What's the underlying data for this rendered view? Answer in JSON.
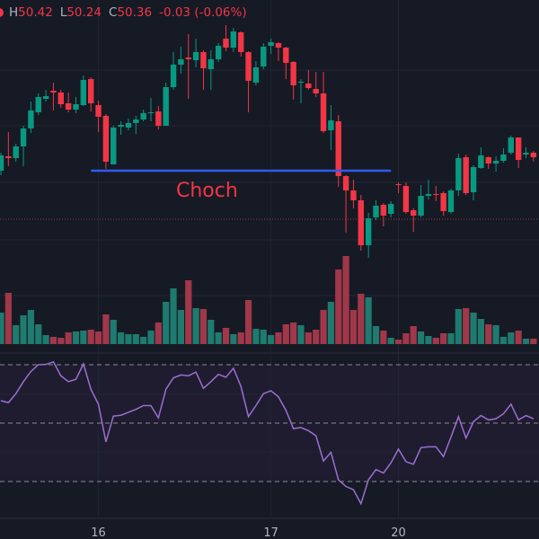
{
  "legend": {
    "high_label": "H",
    "high": "50.42",
    "low_label": "L",
    "low": "50.24",
    "close_label": "C",
    "close": "50.36",
    "change": "-0.03 (-0.06%)"
  },
  "annotation": {
    "label": "Choch",
    "level": 50.22,
    "from_index": 12,
    "to_index": 52
  },
  "price_line": 50.112,
  "colors": {
    "bg": "#161a25",
    "up": "#089981",
    "down": "#f23645",
    "vol_up": "#1f7a6f",
    "vol_down": "#a0384a",
    "level_line": "#2f5bf0",
    "rsi": "#9b6fd0",
    "rsi_band": "#1f1c30"
  },
  "chart_data": {
    "type": "candlestick",
    "x_labels": [
      {
        "label": "16",
        "index": 13
      },
      {
        "label": "17",
        "index": 36
      },
      {
        "label": "20",
        "index": 53
      }
    ],
    "ohlc": [
      [
        50.22,
        50.26,
        50.21,
        50.254
      ],
      [
        50.252,
        50.306,
        50.23,
        50.248
      ],
      [
        50.248,
        50.28,
        50.24,
        50.274
      ],
      [
        50.274,
        50.32,
        50.23,
        50.314
      ],
      [
        50.314,
        50.374,
        50.304,
        50.354
      ],
      [
        50.35,
        50.392,
        50.344,
        50.384
      ],
      [
        50.38,
        50.4,
        50.374,
        50.386
      ],
      [
        50.398,
        50.416,
        50.354,
        50.394
      ],
      [
        50.394,
        50.4,
        50.36,
        50.368
      ],
      [
        50.37,
        50.394,
        50.35,
        50.356
      ],
      [
        50.356,
        50.384,
        50.348,
        50.368
      ],
      [
        50.366,
        50.432,
        50.364,
        50.422
      ],
      [
        50.424,
        50.428,
        50.352,
        50.37
      ],
      [
        50.366,
        50.376,
        50.306,
        50.34
      ],
      [
        50.342,
        50.346,
        50.224,
        50.24
      ],
      [
        50.234,
        50.32,
        50.234,
        50.316
      ],
      [
        50.318,
        50.33,
        50.3,
        50.322
      ],
      [
        50.316,
        50.336,
        50.31,
        50.326
      ],
      [
        50.326,
        50.342,
        50.302,
        50.334
      ],
      [
        50.334,
        50.356,
        50.33,
        50.348
      ],
      [
        50.348,
        50.382,
        50.33,
        50.35
      ],
      [
        50.352,
        50.364,
        50.312,
        50.32
      ],
      [
        50.32,
        50.416,
        50.32,
        50.406
      ],
      [
        50.406,
        50.484,
        50.4,
        50.456
      ],
      [
        50.456,
        50.496,
        50.436,
        50.468
      ],
      [
        50.472,
        50.524,
        50.38,
        50.468
      ],
      [
        50.466,
        50.514,
        50.45,
        50.484
      ],
      [
        50.484,
        50.488,
        50.4,
        50.448
      ],
      [
        50.446,
        50.488,
        50.4,
        50.468
      ],
      [
        50.468,
        50.504,
        50.462,
        50.498
      ],
      [
        50.514,
        50.544,
        50.486,
        50.494
      ],
      [
        50.494,
        50.538,
        50.484,
        50.53
      ],
      [
        50.528,
        50.53,
        50.474,
        50.484
      ],
      [
        50.484,
        50.486,
        50.35,
        50.42
      ],
      [
        50.416,
        50.464,
        50.41,
        50.45
      ],
      [
        50.452,
        50.504,
        50.446,
        50.496
      ],
      [
        50.498,
        50.514,
        50.48,
        50.506
      ],
      [
        50.504,
        50.506,
        50.464,
        50.494
      ],
      [
        50.494,
        50.496,
        50.424,
        50.46
      ],
      [
        50.462,
        50.464,
        50.378,
        50.41
      ],
      [
        50.416,
        50.424,
        50.37,
        50.418
      ],
      [
        50.414,
        50.444,
        50.4,
        50.404
      ],
      [
        50.402,
        50.44,
        50.384,
        50.392
      ],
      [
        50.392,
        50.44,
        50.304,
        50.308
      ],
      [
        50.31,
        50.366,
        50.266,
        50.332
      ],
      [
        50.33,
        50.344,
        50.184,
        50.208
      ],
      [
        50.208,
        50.21,
        50.082,
        50.176
      ],
      [
        50.176,
        50.2,
        50.136,
        50.154
      ],
      [
        50.154,
        50.166,
        50.042,
        50.054
      ],
      [
        50.054,
        50.126,
        50.026,
        50.114
      ],
      [
        50.116,
        50.154,
        50.11,
        50.142
      ],
      [
        50.144,
        50.148,
        50.096,
        50.12
      ],
      [
        50.124,
        50.152,
        50.116,
        50.146
      ],
      [
        50.19,
        50.194,
        50.17,
        50.188
      ],
      [
        50.186,
        50.194,
        50.124,
        50.128
      ],
      [
        50.132,
        50.136,
        50.084,
        50.12
      ],
      [
        50.12,
        50.188,
        50.116,
        50.164
      ],
      [
        50.164,
        50.2,
        50.156,
        50.168
      ],
      [
        50.168,
        50.186,
        50.152,
        50.166
      ],
      [
        50.17,
        50.174,
        50.12,
        50.13
      ],
      [
        50.128,
        50.18,
        50.124,
        50.176
      ],
      [
        50.176,
        50.258,
        50.164,
        50.248
      ],
      [
        50.25,
        50.256,
        50.166,
        50.17
      ],
      [
        50.172,
        50.232,
        50.154,
        50.228
      ],
      [
        50.226,
        50.272,
        50.224,
        50.254
      ],
      [
        50.25,
        50.252,
        50.224,
        50.236
      ],
      [
        50.236,
        50.252,
        50.218,
        50.242
      ],
      [
        50.242,
        50.27,
        50.238,
        50.256
      ],
      [
        50.26,
        50.298,
        50.256,
        50.294
      ],
      [
        50.294,
        50.294,
        50.226,
        50.244
      ],
      [
        50.256,
        50.272,
        50.248,
        50.26
      ],
      [
        50.26,
        50.264,
        50.24,
        50.25
      ]
    ],
    "volume": [
      350,
      570,
      210,
      320,
      380,
      220,
      100,
      80,
      70,
      130,
      140,
      150,
      160,
      140,
      330,
      270,
      130,
      110,
      110,
      80,
      150,
      240,
      470,
      620,
      380,
      710,
      400,
      390,
      270,
      130,
      180,
      110,
      130,
      490,
      170,
      160,
      100,
      130,
      220,
      240,
      210,
      130,
      160,
      380,
      470,
      830,
      980,
      380,
      560,
      520,
      200,
      150,
      70,
      50,
      120,
      200,
      140,
      90,
      70,
      120,
      120,
      390,
      400,
      350,
      280,
      220,
      210,
      80,
      130,
      150,
      60,
      60
    ],
    "rsi": [
      57.7,
      57.0,
      60.1,
      64.2,
      67.7,
      70.0,
      70.1,
      71.0,
      66.2,
      64.2,
      65.0,
      70.3,
      61.6,
      56.5,
      43.6,
      52.4,
      52.7,
      53.7,
      54.7,
      56.0,
      56.0,
      51.8,
      61.6,
      65.5,
      66.5,
      66.2,
      67.5,
      61.9,
      64.2,
      66.7,
      65.7,
      68.8,
      62.6,
      52.2,
      56.0,
      60.1,
      61.1,
      59.0,
      54.4,
      48.1,
      48.5,
      47.4,
      45.7,
      37.0,
      40.0,
      30.6,
      28.3,
      27.2,
      22.4,
      30.6,
      34.1,
      32.9,
      36.4,
      41.1,
      36.8,
      35.9,
      41.6,
      41.9,
      41.9,
      38.5,
      45.2,
      52.2,
      44.9,
      50.5,
      52.6,
      51.1,
      51.5,
      53.2,
      56.5,
      51.1,
      52.6,
      51.5
    ],
    "rsi_levels": [
      70,
      50,
      30
    ]
  }
}
